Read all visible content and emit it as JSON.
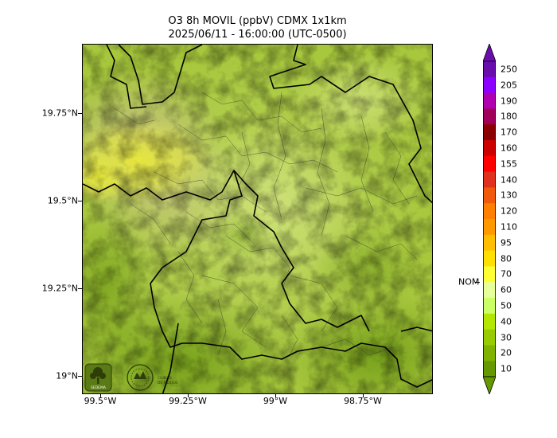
{
  "title": {
    "line1": "O3 8h MOVIL (ppbV) CDMX 1x1km",
    "line2": "2025/06/11 - 16:00:00 (UTC-0500)"
  },
  "axes": {
    "lat_labels": [
      "19.75°N",
      "19.5°N",
      "19.25°N",
      "19°N"
    ],
    "lon_labels": [
      "99.5°W",
      "99.25°W",
      "99°W",
      "98.75°W"
    ]
  },
  "colorbar": {
    "labels": [
      "250",
      "205",
      "190",
      "180",
      "170",
      "160",
      "155",
      "140",
      "130",
      "120",
      "110",
      "95",
      "80",
      "70",
      "60",
      "50",
      "40",
      "30",
      "20",
      "10"
    ],
    "colors": [
      "#6a0dad",
      "#8b00ff",
      "#b000b0",
      "#a0005a",
      "#8b0000",
      "#cc0000",
      "#ff0000",
      "#e0301e",
      "#f05a0a",
      "#ff7f00",
      "#ff9900",
      "#ffbf00",
      "#ffe000",
      "#ffff33",
      "#e6ff99",
      "#ccff66",
      "#b3e600",
      "#99cc00",
      "#80b300",
      "#669900"
    ],
    "nom_label": "NOM",
    "nom_value": 65
  },
  "logos": {
    "left": "SEDEMA",
    "right": "CIUDAD DE MÉXICO"
  }
}
